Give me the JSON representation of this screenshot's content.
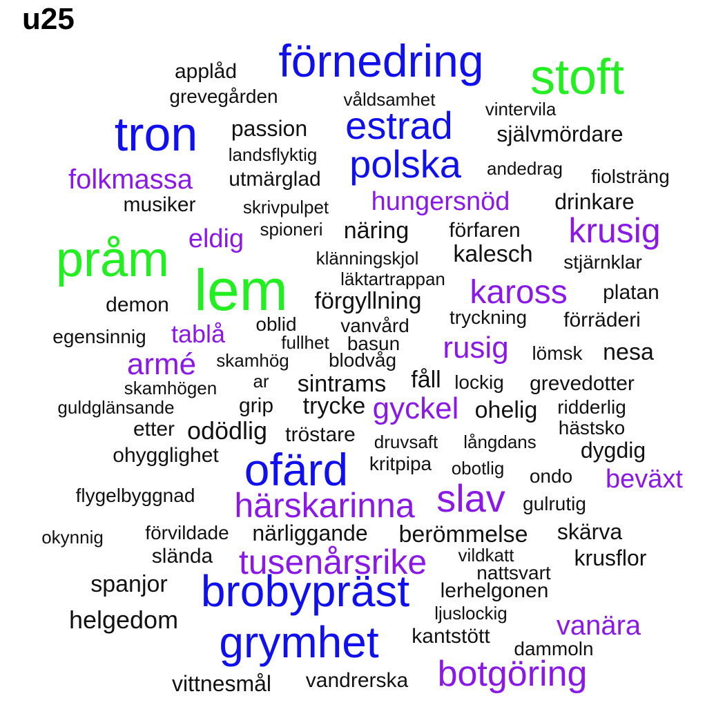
{
  "title": "u25",
  "colors": {
    "green": "#22ee22",
    "blue": "#1010ee",
    "purple": "#8a18e6",
    "black": "#111111"
  },
  "words": [
    {
      "text": "förnedring",
      "color": "blue"
    },
    {
      "text": "stoft",
      "color": "green"
    },
    {
      "text": "applåd",
      "color": "black"
    },
    {
      "text": "grevegården",
      "color": "black"
    },
    {
      "text": "våldsamhet",
      "color": "black"
    },
    {
      "text": "vintervila",
      "color": "black"
    },
    {
      "text": "tron",
      "color": "blue"
    },
    {
      "text": "passion",
      "color": "black"
    },
    {
      "text": "estrad",
      "color": "blue"
    },
    {
      "text": "självmördare",
      "color": "black"
    },
    {
      "text": "landsflyktig",
      "color": "black"
    },
    {
      "text": "polska",
      "color": "blue"
    },
    {
      "text": "folkmassa",
      "color": "purple"
    },
    {
      "text": "utmärglad",
      "color": "black"
    },
    {
      "text": "andedrag",
      "color": "black"
    },
    {
      "text": "fiolsträng",
      "color": "black"
    },
    {
      "text": "musiker",
      "color": "black"
    },
    {
      "text": "skrivpulpet",
      "color": "black"
    },
    {
      "text": "hungersnöd",
      "color": "purple"
    },
    {
      "text": "drinkare",
      "color": "black"
    },
    {
      "text": "pråm",
      "color": "green"
    },
    {
      "text": "eldig",
      "color": "purple"
    },
    {
      "text": "spioneri",
      "color": "black"
    },
    {
      "text": "näring",
      "color": "black"
    },
    {
      "text": "förfaren",
      "color": "black"
    },
    {
      "text": "krusig",
      "color": "purple"
    },
    {
      "text": "lem",
      "color": "green"
    },
    {
      "text": "klänningskjol",
      "color": "black"
    },
    {
      "text": "kalesch",
      "color": "black"
    },
    {
      "text": "stjärnklar",
      "color": "black"
    },
    {
      "text": "läktartrappan",
      "color": "black"
    },
    {
      "text": "demon",
      "color": "black"
    },
    {
      "text": "förgyllning",
      "color": "black"
    },
    {
      "text": "kaross",
      "color": "purple"
    },
    {
      "text": "platan",
      "color": "black"
    },
    {
      "text": "tryckning",
      "color": "black"
    },
    {
      "text": "egensinnig",
      "color": "black"
    },
    {
      "text": "tablå",
      "color": "purple"
    },
    {
      "text": "oblid",
      "color": "black"
    },
    {
      "text": "vanvård",
      "color": "black"
    },
    {
      "text": "förräderi",
      "color": "black"
    },
    {
      "text": "fullhet",
      "color": "black"
    },
    {
      "text": "basun",
      "color": "black"
    },
    {
      "text": "rusig",
      "color": "purple"
    },
    {
      "text": "armé",
      "color": "purple"
    },
    {
      "text": "skamhög",
      "color": "black"
    },
    {
      "text": "blodvåg",
      "color": "black"
    },
    {
      "text": "lömsk",
      "color": "black"
    },
    {
      "text": "nesa",
      "color": "black"
    },
    {
      "text": "skamhögen",
      "color": "black"
    },
    {
      "text": "ar",
      "color": "black"
    },
    {
      "text": "sintrams",
      "color": "black"
    },
    {
      "text": "fåll",
      "color": "black"
    },
    {
      "text": "lockig",
      "color": "black"
    },
    {
      "text": "grevedotter",
      "color": "black"
    },
    {
      "text": "guldglänsande",
      "color": "black"
    },
    {
      "text": "grip",
      "color": "black"
    },
    {
      "text": "trycke",
      "color": "black"
    },
    {
      "text": "gyckel",
      "color": "purple"
    },
    {
      "text": "ohelig",
      "color": "black"
    },
    {
      "text": "ridderlig",
      "color": "black"
    },
    {
      "text": "etter",
      "color": "black"
    },
    {
      "text": "odödlig",
      "color": "black"
    },
    {
      "text": "tröstare",
      "color": "black"
    },
    {
      "text": "druvsaft",
      "color": "black"
    },
    {
      "text": "långdans",
      "color": "black"
    },
    {
      "text": "hästsko",
      "color": "black"
    },
    {
      "text": "dygdig",
      "color": "black"
    },
    {
      "text": "ohygglighet",
      "color": "black"
    },
    {
      "text": "ofärd",
      "color": "blue"
    },
    {
      "text": "kritpipa",
      "color": "black"
    },
    {
      "text": "obotlig",
      "color": "black"
    },
    {
      "text": "ondo",
      "color": "black"
    },
    {
      "text": "beväxt",
      "color": "purple"
    },
    {
      "text": "flygelbyggnad",
      "color": "black"
    },
    {
      "text": "härskarinna",
      "color": "purple"
    },
    {
      "text": "slav",
      "color": "purple"
    },
    {
      "text": "gulrutig",
      "color": "black"
    },
    {
      "text": "okynnig",
      "color": "black"
    },
    {
      "text": "förvildade",
      "color": "black"
    },
    {
      "text": "närliggande",
      "color": "black"
    },
    {
      "text": "berömmelse",
      "color": "black"
    },
    {
      "text": "skärva",
      "color": "black"
    },
    {
      "text": "slända",
      "color": "black"
    },
    {
      "text": "tusenårsrike",
      "color": "purple"
    },
    {
      "text": "vildkatt",
      "color": "black"
    },
    {
      "text": "krusflor",
      "color": "black"
    },
    {
      "text": "nattsvart",
      "color": "black"
    },
    {
      "text": "spanjor",
      "color": "black"
    },
    {
      "text": "brobypräst",
      "color": "blue"
    },
    {
      "text": "lerhelgonen",
      "color": "black"
    },
    {
      "text": "helgedom",
      "color": "black"
    },
    {
      "text": "ljuslockig",
      "color": "black"
    },
    {
      "text": "vanära",
      "color": "purple"
    },
    {
      "text": "grymhet",
      "color": "blue"
    },
    {
      "text": "kantstött",
      "color": "black"
    },
    {
      "text": "dammoln",
      "color": "black"
    },
    {
      "text": "botgöring",
      "color": "purple"
    },
    {
      "text": "vittnesmål",
      "color": "black"
    },
    {
      "text": "vandrerska",
      "color": "black"
    }
  ]
}
